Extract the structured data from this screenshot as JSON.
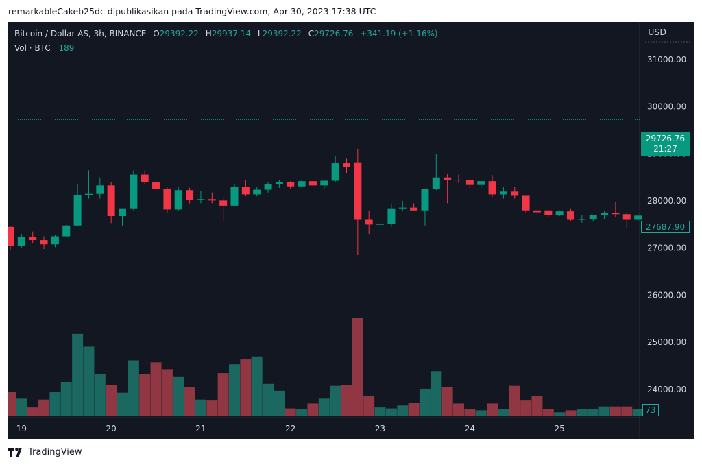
{
  "byline": "remarkableCakeb25dc dipublikasikan pada TradingView.com, Apr 30, 2023 17:38 UTC",
  "legend": {
    "symbol": "Bitcoin / Dollar AS, 3h, BINANCE",
    "open_key": "O",
    "open": "29392.22",
    "high_key": "H",
    "high": "29937.14",
    "low_key": "L",
    "low": "29392.22",
    "close_key": "C",
    "close": "29726.76",
    "change": "+341.19 (+1.16%)",
    "vol_label": "Vol · BTC",
    "vol_value": "189"
  },
  "currency": "USD",
  "last_price": {
    "value": "29726.76",
    "countdown": "21:27"
  },
  "prev_price": "27687.90",
  "volume_tag": "73",
  "branding": "TradingView",
  "colors": {
    "up": "#089981",
    "down": "#f23645",
    "vol_up": "#22ab94",
    "vol_down": "#f7525f",
    "bg": "#131722",
    "text": "#d1d4dc"
  },
  "chart_data": {
    "type": "candlestick",
    "interval": "3h",
    "ylim": [
      23400,
      31800
    ],
    "y_ticks": [
      "31000.00",
      "30000.00",
      "29000.00",
      "28000.00",
      "27000.00",
      "26000.00",
      "25000.00",
      "24000.00"
    ],
    "y_tick_values": [
      31000,
      30000,
      29000,
      28000,
      27000,
      26000,
      25000,
      24000
    ],
    "x_tick_labels": [
      "19",
      "20",
      "21",
      "22",
      "23",
      "24",
      "25"
    ],
    "x_tick_index": [
      1,
      9,
      17,
      25,
      33,
      41,
      49
    ],
    "last_price_line": 29726.76,
    "candles": [
      {
        "o": 27450,
        "h": 27470,
        "l": 26950,
        "c": 27050
      },
      {
        "o": 27050,
        "h": 27300,
        "l": 27000,
        "c": 27230
      },
      {
        "o": 27230,
        "h": 27350,
        "l": 27100,
        "c": 27170
      },
      {
        "o": 27170,
        "h": 27250,
        "l": 26980,
        "c": 27080
      },
      {
        "o": 27080,
        "h": 27280,
        "l": 27020,
        "c": 27250
      },
      {
        "o": 27250,
        "h": 27500,
        "l": 27230,
        "c": 27480
      },
      {
        "o": 27480,
        "h": 28350,
        "l": 27460,
        "c": 28120
      },
      {
        "o": 28120,
        "h": 28650,
        "l": 28050,
        "c": 28150
      },
      {
        "o": 28150,
        "h": 28500,
        "l": 28050,
        "c": 28330
      },
      {
        "o": 28330,
        "h": 28400,
        "l": 27530,
        "c": 27680
      },
      {
        "o": 27680,
        "h": 27800,
        "l": 27480,
        "c": 27830
      },
      {
        "o": 27830,
        "h": 28650,
        "l": 27800,
        "c": 28560
      },
      {
        "o": 28560,
        "h": 28650,
        "l": 28350,
        "c": 28400
      },
      {
        "o": 28400,
        "h": 28450,
        "l": 28200,
        "c": 28250
      },
      {
        "o": 28250,
        "h": 28300,
        "l": 27750,
        "c": 27820
      },
      {
        "o": 27820,
        "h": 28300,
        "l": 27800,
        "c": 28230
      },
      {
        "o": 28230,
        "h": 28280,
        "l": 27950,
        "c": 28020
      },
      {
        "o": 28020,
        "h": 28220,
        "l": 27950,
        "c": 28040
      },
      {
        "o": 28040,
        "h": 28180,
        "l": 27950,
        "c": 28010
      },
      {
        "o": 28010,
        "h": 28060,
        "l": 27560,
        "c": 27900
      },
      {
        "o": 27900,
        "h": 28350,
        "l": 27880,
        "c": 28300
      },
      {
        "o": 28300,
        "h": 28450,
        "l": 28100,
        "c": 28140
      },
      {
        "o": 28140,
        "h": 28300,
        "l": 28100,
        "c": 28240
      },
      {
        "o": 28240,
        "h": 28400,
        "l": 28180,
        "c": 28350
      },
      {
        "o": 28350,
        "h": 28450,
        "l": 28280,
        "c": 28400
      },
      {
        "o": 28400,
        "h": 28420,
        "l": 28250,
        "c": 28310
      },
      {
        "o": 28310,
        "h": 28450,
        "l": 28300,
        "c": 28420
      },
      {
        "o": 28420,
        "h": 28450,
        "l": 28320,
        "c": 28330
      },
      {
        "o": 28330,
        "h": 28450,
        "l": 28250,
        "c": 28430
      },
      {
        "o": 28430,
        "h": 28950,
        "l": 28400,
        "c": 28800
      },
      {
        "o": 28800,
        "h": 28900,
        "l": 28580,
        "c": 28720
      },
      {
        "o": 28820,
        "h": 29100,
        "l": 26850,
        "c": 27600
      },
      {
        "o": 27600,
        "h": 27800,
        "l": 27300,
        "c": 27500
      },
      {
        "o": 27500,
        "h": 27550,
        "l": 27330,
        "c": 27510
      },
      {
        "o": 27510,
        "h": 27950,
        "l": 27450,
        "c": 27830
      },
      {
        "o": 27830,
        "h": 28000,
        "l": 27780,
        "c": 27860
      },
      {
        "o": 27860,
        "h": 27950,
        "l": 27800,
        "c": 27800
      },
      {
        "o": 27800,
        "h": 28250,
        "l": 27480,
        "c": 28250
      },
      {
        "o": 28250,
        "h": 28990,
        "l": 28230,
        "c": 28500
      },
      {
        "o": 28500,
        "h": 28570,
        "l": 27950,
        "c": 28450
      },
      {
        "o": 28450,
        "h": 28560,
        "l": 28380,
        "c": 28440
      },
      {
        "o": 28440,
        "h": 28470,
        "l": 28250,
        "c": 28340
      },
      {
        "o": 28340,
        "h": 28400,
        "l": 28280,
        "c": 28420
      },
      {
        "o": 28420,
        "h": 28550,
        "l": 28080,
        "c": 28140
      },
      {
        "o": 28140,
        "h": 28300,
        "l": 28050,
        "c": 28200
      },
      {
        "o": 28200,
        "h": 28300,
        "l": 28050,
        "c": 28110
      },
      {
        "o": 28110,
        "h": 28100,
        "l": 27750,
        "c": 27800
      },
      {
        "o": 27800,
        "h": 27850,
        "l": 27700,
        "c": 27760
      },
      {
        "o": 27800,
        "h": 27800,
        "l": 27650,
        "c": 27700
      },
      {
        "o": 27700,
        "h": 27800,
        "l": 27680,
        "c": 27780
      },
      {
        "o": 27780,
        "h": 27830,
        "l": 27580,
        "c": 27600
      },
      {
        "o": 27600,
        "h": 27700,
        "l": 27540,
        "c": 27620
      },
      {
        "o": 27620,
        "h": 27680,
        "l": 27560,
        "c": 27700
      },
      {
        "o": 27700,
        "h": 27780,
        "l": 27620,
        "c": 27750
      },
      {
        "o": 27750,
        "h": 27980,
        "l": 27650,
        "c": 27720
      },
      {
        "o": 27720,
        "h": 27760,
        "l": 27420,
        "c": 27600
      },
      {
        "o": 27600,
        "h": 27760,
        "l": 27550,
        "c": 27690
      }
    ],
    "volume_relative": [
      0.25,
      0.18,
      0.09,
      0.17,
      0.25,
      0.35,
      0.84,
      0.71,
      0.43,
      0.32,
      0.24,
      0.57,
      0.43,
      0.55,
      0.48,
      0.4,
      0.3,
      0.17,
      0.16,
      0.44,
      0.53,
      0.58,
      0.61,
      0.33,
      0.26,
      0.08,
      0.07,
      0.13,
      0.18,
      0.31,
      0.32,
      1.0,
      0.21,
      0.09,
      0.08,
      0.11,
      0.14,
      0.28,
      0.46,
      0.3,
      0.13,
      0.07,
      0.06,
      0.13,
      0.07,
      0.31,
      0.16,
      0.21,
      0.07,
      0.04,
      0.06,
      0.07,
      0.07,
      0.1,
      0.1,
      0.1,
      0.07
    ]
  }
}
